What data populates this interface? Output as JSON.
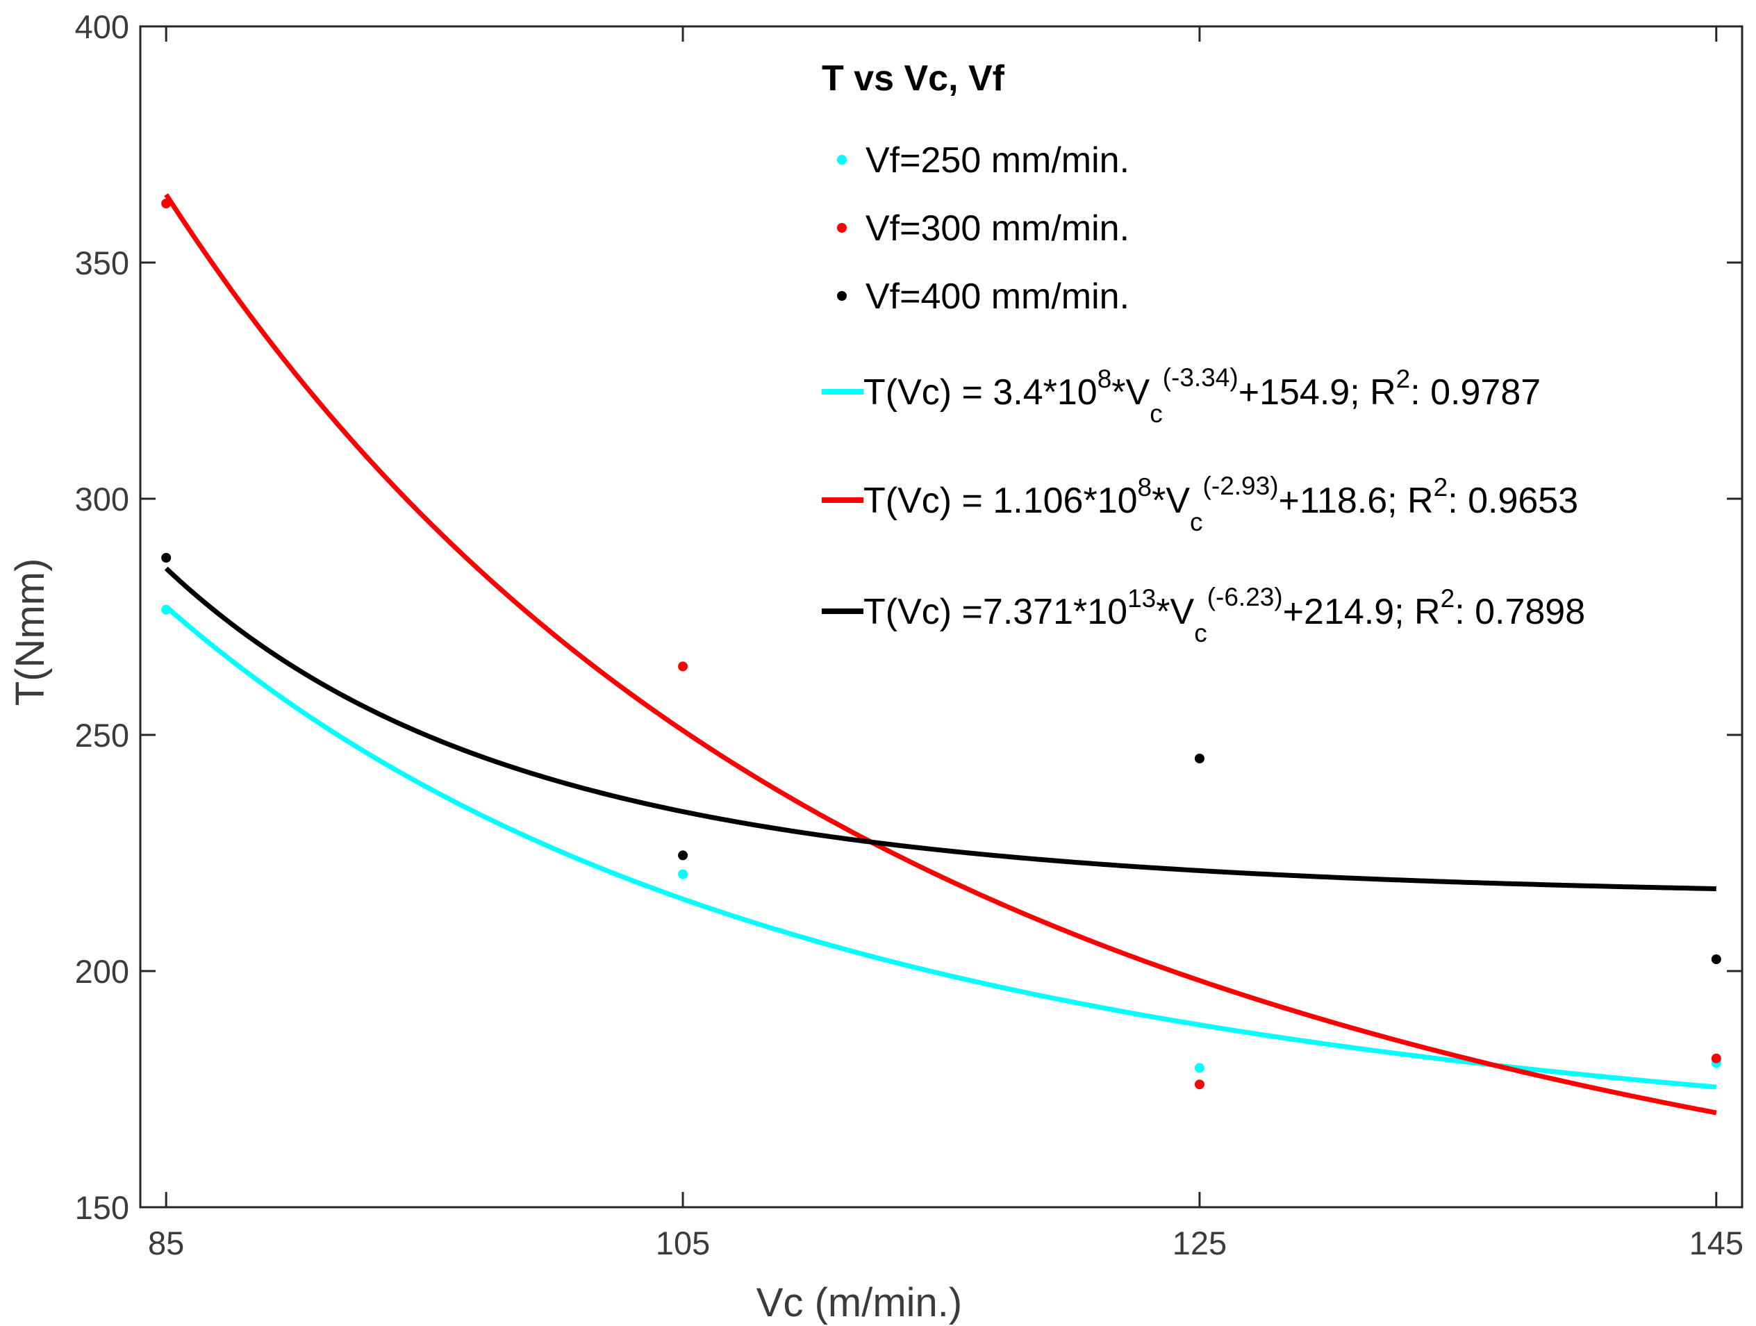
{
  "chart_data": {
    "type": "scatter",
    "title": "T vs Vc, Vf",
    "xlabel": "Vc (m/min.)",
    "ylabel": "T(Nmm)",
    "xlim": [
      84,
      146
    ],
    "ylim": [
      150,
      400
    ],
    "x_ticks": [
      "85",
      "105",
      "125",
      "145"
    ],
    "y_ticks": [
      "150",
      "200",
      "250",
      "300",
      "350",
      "400"
    ],
    "x_tick_values": [
      85,
      105,
      125,
      145
    ],
    "y_tick_values": [
      150,
      200,
      250,
      300,
      350,
      400
    ],
    "legend_position": "top-right",
    "series": [
      {
        "name": "Vf=250 mm/min.",
        "color": "#00ffff",
        "x": [
          85,
          105,
          125,
          145
        ],
        "values": [
          276.5,
          220.5,
          179.5,
          180.5
        ]
      },
      {
        "name": "Vf=300 mm/min.",
        "color": "#ff0000",
        "x": [
          85,
          105,
          125,
          145
        ],
        "values": [
          362.5,
          264.5,
          176,
          181.5
        ]
      },
      {
        "name": "Vf=400 mm/min.",
        "color": "#000000",
        "x": [
          85,
          105,
          125,
          145
        ],
        "values": [
          287.5,
          224.5,
          245,
          202.5
        ]
      }
    ],
    "fits": [
      {
        "color": "#00ffff",
        "a": 340000000,
        "b": -3.34,
        "c": 154.9,
        "eq_main": "T(Vc) = 3.4*10",
        "exp1": "8",
        "eq_mid": "*V",
        "sub": "c",
        "exp2": "(-3.34)",
        "eq_tail": "+154.9; R",
        "r_exp": "2",
        "r_val": ": 0.9787"
      },
      {
        "color": "#ff0000",
        "a": 110600000,
        "b": -2.93,
        "c": 118.6,
        "eq_main": "T(Vc) = 1.106*10",
        "exp1": "8",
        "eq_mid": "*V",
        "sub": "c",
        "exp2": "(-2.93)",
        "eq_tail": "+118.6; R",
        "r_exp": "2",
        "r_val": ": 0.9653"
      },
      {
        "color": "#000000",
        "a": 73710000000000,
        "b": -6.23,
        "c": 214.9,
        "eq_main": "T(Vc) =7.371*10",
        "exp1": "13",
        "eq_mid": "*V",
        "sub": "c",
        "exp2": "(-6.23)",
        "eq_tail": "+214.9; R",
        "r_exp": "2",
        "r_val": ": 0.7898"
      }
    ]
  }
}
